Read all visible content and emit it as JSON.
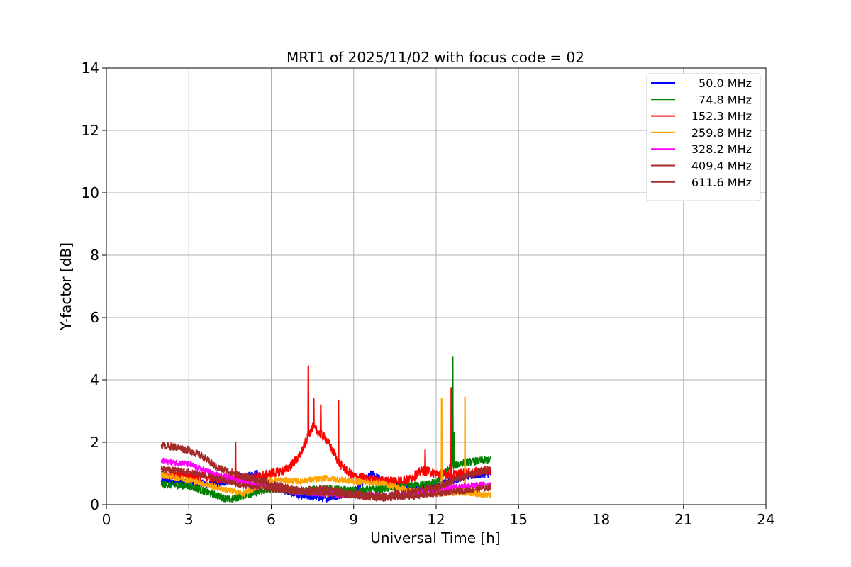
{
  "chart_data": {
    "type": "line",
    "title": "MRT1 of 2025/11/02 with focus code = 02",
    "xlabel": "Universal Time [h]",
    "ylabel": "Y-factor [dB]",
    "xlim": [
      0,
      24
    ],
    "ylim": [
      0,
      14
    ],
    "xticks": [
      0,
      3,
      6,
      9,
      12,
      15,
      18,
      21,
      24
    ],
    "yticks": [
      0,
      2,
      4,
      6,
      8,
      10,
      12,
      14
    ],
    "grid": true,
    "legend_position": "top-right",
    "series": [
      {
        "name": "50.0 MHz",
        "color": "#0000ff",
        "x": [
          2.0,
          3.0,
          4.0,
          5.0,
          5.5,
          6.0,
          7.0,
          8.0,
          9.0,
          9.6,
          10.0,
          11.0,
          12.0,
          13.0,
          14.0
        ],
        "y": [
          0.75,
          0.7,
          0.65,
          0.9,
          1.0,
          0.6,
          0.3,
          0.2,
          0.4,
          1.0,
          0.8,
          0.5,
          0.6,
          0.9,
          1.0
        ],
        "amp": 0.12
      },
      {
        "name": "74.8 MHz",
        "color": "#008000",
        "x": [
          2.0,
          3.0,
          4.0,
          4.5,
          5.0,
          6.0,
          7.0,
          8.0,
          9.0,
          10.0,
          11.0,
          12.0,
          12.5,
          13.0,
          14.0
        ],
        "y": [
          0.65,
          0.6,
          0.3,
          0.15,
          0.3,
          0.5,
          0.45,
          0.5,
          0.45,
          0.5,
          0.6,
          0.7,
          1.2,
          1.35,
          1.45
        ],
        "amp": 0.12,
        "spikes": [
          [
            12.6,
            4.75
          ],
          [
            12.65,
            2.3
          ]
        ]
      },
      {
        "name": "152.3 MHz",
        "color": "#ff0000",
        "x": [
          2.0,
          3.0,
          4.0,
          5.0,
          6.0,
          6.5,
          7.0,
          7.5,
          8.0,
          8.5,
          9.0,
          10.0,
          11.0,
          11.5,
          12.0,
          12.5,
          13.0,
          14.0
        ],
        "y": [
          1.0,
          0.95,
          0.85,
          0.8,
          1.0,
          1.1,
          1.5,
          2.5,
          2.1,
          1.3,
          0.9,
          0.75,
          0.8,
          1.1,
          1.0,
          0.95,
          1.0,
          1.1
        ],
        "amp": 0.15,
        "spikes": [
          [
            4.7,
            2.0
          ],
          [
            7.35,
            4.45
          ],
          [
            7.55,
            3.4
          ],
          [
            7.8,
            3.2
          ],
          [
            8.45,
            3.35
          ],
          [
            11.6,
            1.75
          ],
          [
            12.55,
            3.75
          ]
        ]
      },
      {
        "name": "259.8 MHz",
        "color": "#ffa500",
        "x": [
          2.0,
          3.0,
          4.0,
          5.0,
          6.0,
          7.0,
          8.0,
          9.0,
          10.0,
          11.0,
          12.0,
          13.0,
          14.0
        ],
        "y": [
          0.95,
          0.8,
          0.55,
          0.35,
          0.8,
          0.75,
          0.85,
          0.75,
          0.7,
          0.45,
          0.35,
          0.4,
          0.3
        ],
        "amp": 0.1,
        "spikes": [
          [
            12.2,
            3.4
          ],
          [
            13.05,
            3.45
          ]
        ]
      },
      {
        "name": "328.2 MHz",
        "color": "#ff00ff",
        "x": [
          2.0,
          3.0,
          4.0,
          5.0,
          6.0,
          7.0,
          8.0,
          9.0,
          10.0,
          11.0,
          12.0,
          13.0,
          14.0
        ],
        "y": [
          1.4,
          1.3,
          0.95,
          0.75,
          0.6,
          0.4,
          0.35,
          0.3,
          0.3,
          0.35,
          0.45,
          0.6,
          0.65
        ],
        "amp": 0.1
      },
      {
        "name": "409.4 MHz",
        "color": "#a52a2a",
        "x": [
          2.0,
          3.0,
          4.0,
          5.0,
          6.0,
          7.0,
          8.0,
          9.0,
          10.0,
          11.0,
          12.0,
          13.0,
          14.0
        ],
        "y": [
          1.15,
          1.05,
          0.85,
          0.6,
          0.5,
          0.4,
          0.35,
          0.3,
          0.2,
          0.25,
          0.35,
          0.45,
          0.55
        ],
        "amp": 0.1
      },
      {
        "name": "611.6 MHz",
        "color": "#a52a2a",
        "x": [
          2.0,
          2.5,
          3.0,
          3.5,
          4.0,
          5.0,
          6.0,
          7.0,
          8.0,
          9.0,
          10.0,
          11.0,
          12.0,
          13.0,
          14.0
        ],
        "y": [
          1.9,
          1.85,
          1.75,
          1.55,
          1.2,
          0.9,
          0.65,
          0.45,
          0.5,
          0.35,
          0.25,
          0.4,
          0.55,
          0.9,
          1.15
        ],
        "amp": 0.12
      }
    ]
  }
}
